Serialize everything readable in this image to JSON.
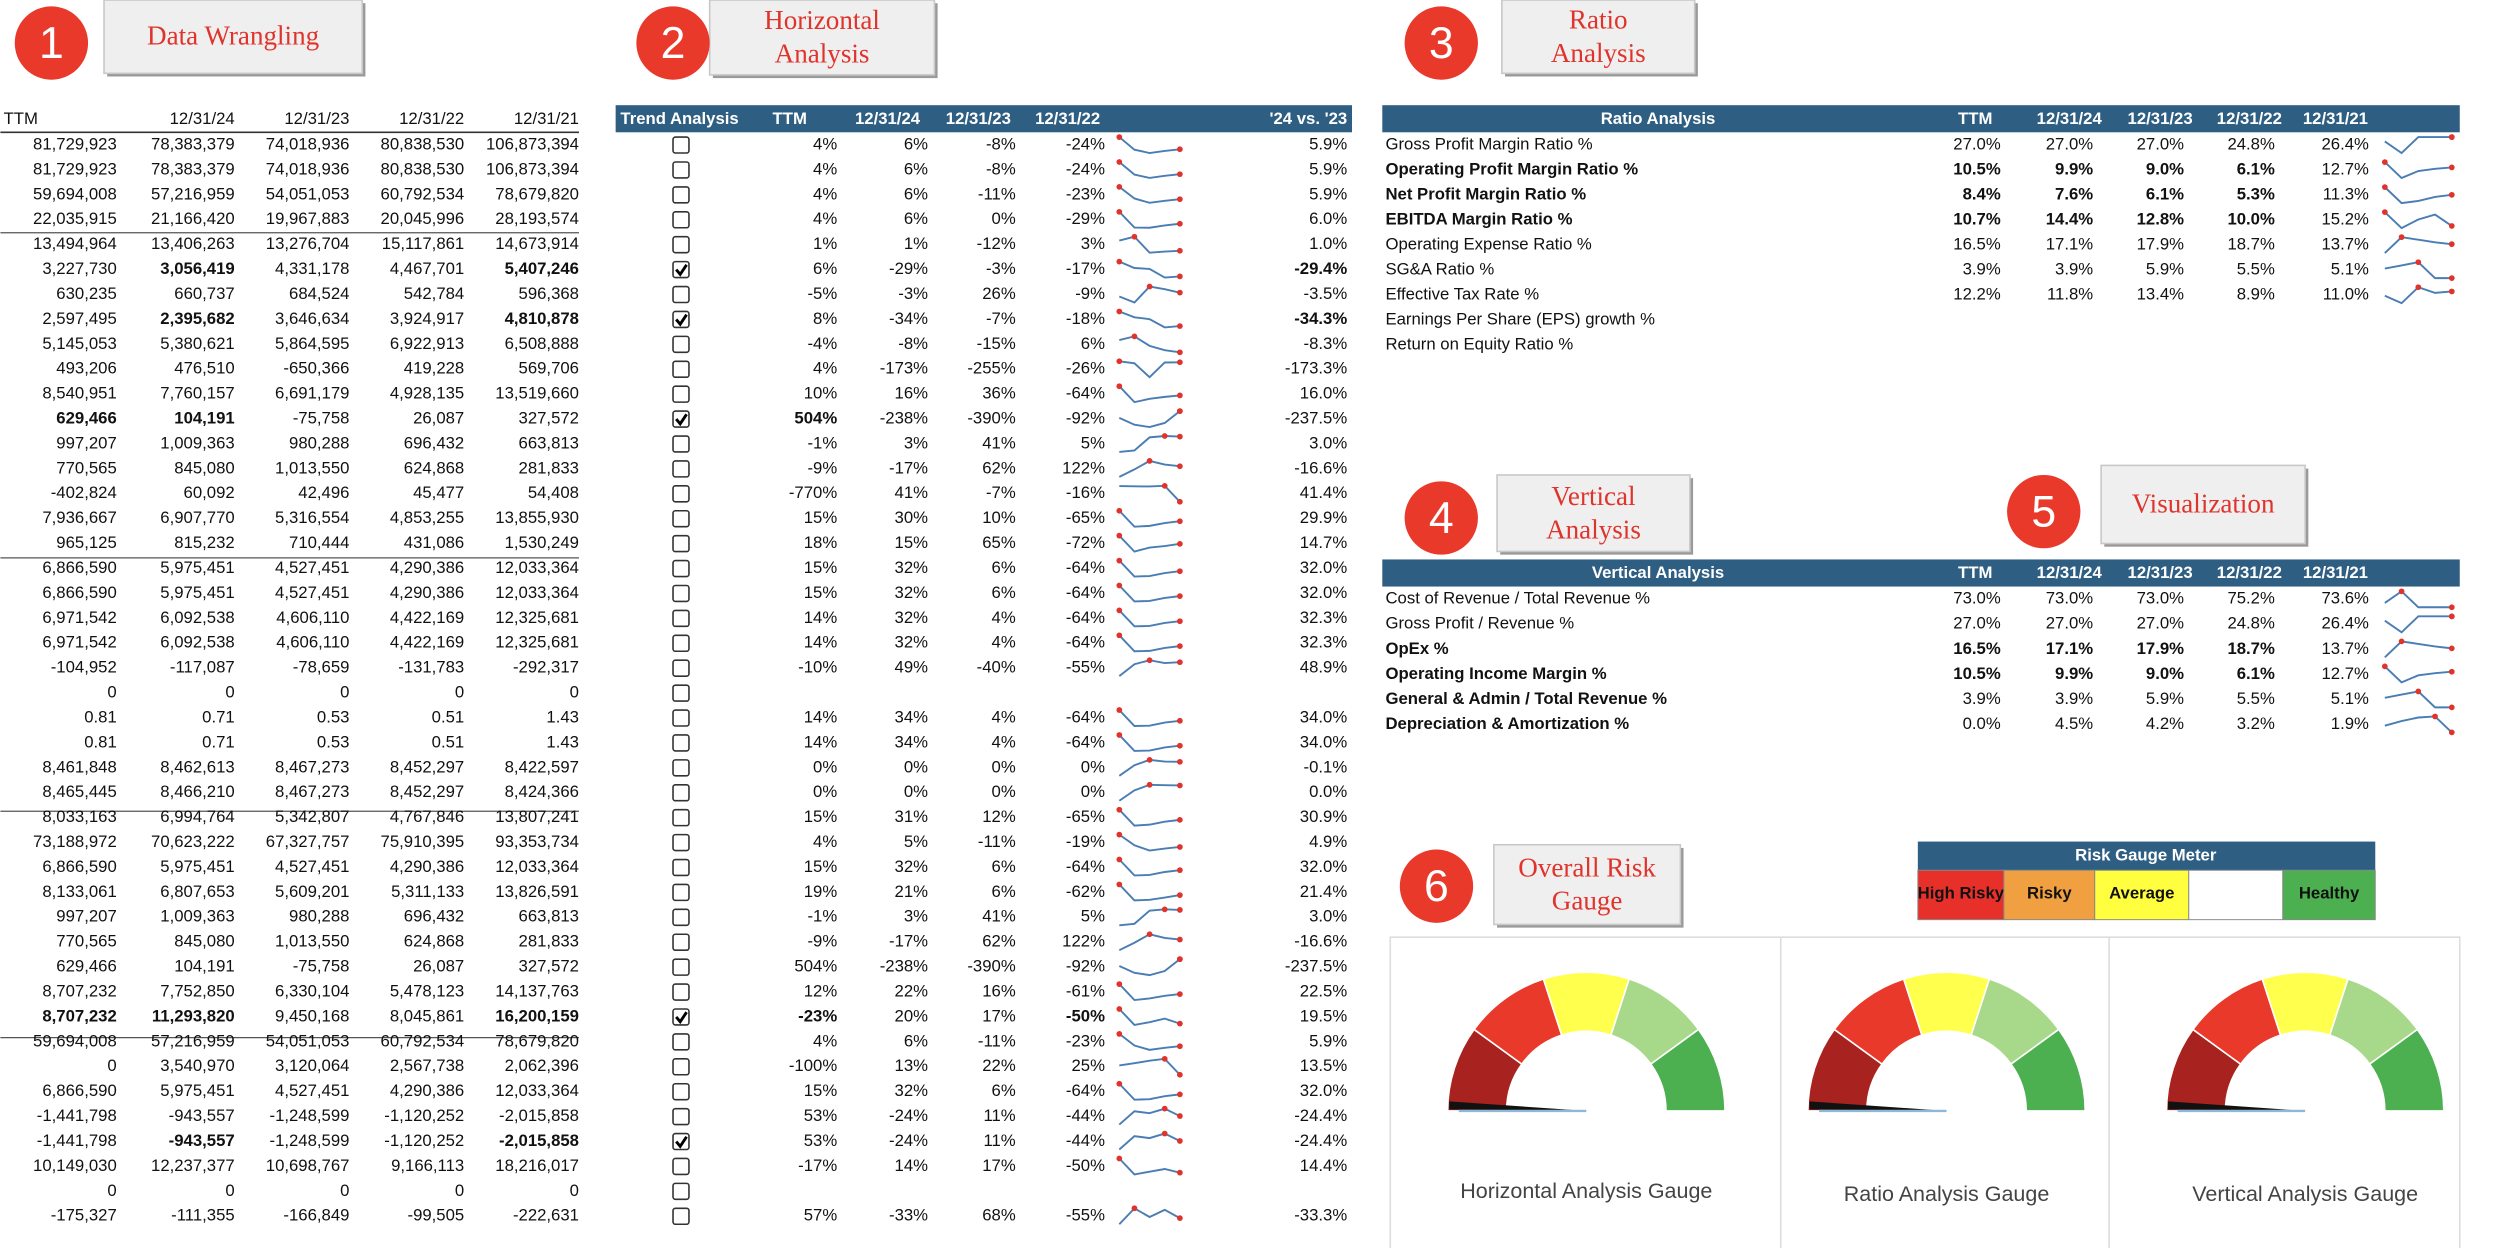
{
  "sections": [
    {
      "number": "1",
      "label": "Data Wrangling"
    },
    {
      "number": "2",
      "label": "Horizontal Analysis"
    },
    {
      "number": "3",
      "label": "Ratio Analysis"
    },
    {
      "number": "4",
      "label": "Vertical Analysis"
    },
    {
      "number": "5",
      "label": "Visualization"
    },
    {
      "number": "6",
      "label": "Overall Risk Gauge"
    }
  ],
  "data_table": {
    "columns": [
      "TTM",
      "12/31/24",
      "12/31/23",
      "12/31/22",
      "12/31/21"
    ],
    "rows": [
      [
        "81,729,923",
        "78,383,379",
        "74,018,936",
        "80,838,530",
        "106,873,394"
      ],
      [
        "81,729,923",
        "78,383,379",
        "74,018,936",
        "80,838,530",
        "106,873,394"
      ],
      [
        "59,694,008",
        "57,216,959",
        "54,051,053",
        "60,792,534",
        "78,679,820"
      ],
      [
        "22,035,915",
        "21,166,420",
        "19,967,883",
        "20,045,996",
        "28,193,574"
      ],
      [
        "13,494,964",
        "13,406,263",
        "13,276,704",
        "15,117,861",
        "14,673,914"
      ],
      [
        "3,227,730",
        "3,056,419",
        "4,331,178",
        "4,467,701",
        "5,407,246"
      ],
      [
        "630,235",
        "660,737",
        "684,524",
        "542,784",
        "596,368"
      ],
      [
        "2,597,495",
        "2,395,682",
        "3,646,634",
        "3,924,917",
        "4,810,878"
      ],
      [
        "5,145,053",
        "5,380,621",
        "5,864,595",
        "6,922,913",
        "6,508,888"
      ],
      [
        "493,206",
        "476,510",
        "-650,366",
        "419,228",
        "569,706"
      ],
      [
        "8,540,951",
        "7,760,157",
        "6,691,179",
        "4,928,135",
        "13,519,660"
      ],
      [
        "629,466",
        "104,191",
        "-75,758",
        "26,087",
        "327,572"
      ],
      [
        "997,207",
        "1,009,363",
        "980,288",
        "696,432",
        "663,813"
      ],
      [
        "770,565",
        "845,080",
        "1,013,550",
        "624,868",
        "281,833"
      ],
      [
        "-402,824",
        "60,092",
        "42,496",
        "45,477",
        "54,408"
      ],
      [
        "7,936,667",
        "6,907,770",
        "5,316,554",
        "4,853,255",
        "13,855,930"
      ],
      [
        "965,125",
        "815,232",
        "710,444",
        "431,086",
        "1,530,249"
      ],
      [
        "6,866,590",
        "5,975,451",
        "4,527,451",
        "4,290,386",
        "12,033,364"
      ],
      [
        "6,866,590",
        "5,975,451",
        "4,527,451",
        "4,290,386",
        "12,033,364"
      ],
      [
        "6,971,542",
        "6,092,538",
        "4,606,110",
        "4,422,169",
        "12,325,681"
      ],
      [
        "6,971,542",
        "6,092,538",
        "4,606,110",
        "4,422,169",
        "12,325,681"
      ],
      [
        "-104,952",
        "-117,087",
        "-78,659",
        "-131,783",
        "-292,317"
      ],
      [
        "0",
        "0",
        "0",
        "0",
        "0"
      ],
      [
        "0.81",
        "0.71",
        "0.53",
        "0.51",
        "1.43"
      ],
      [
        "0.81",
        "0.71",
        "0.53",
        "0.51",
        "1.43"
      ],
      [
        "8,461,848",
        "8,462,613",
        "8,467,273",
        "8,452,297",
        "8,422,597"
      ],
      [
        "8,465,445",
        "8,466,210",
        "8,467,273",
        "8,452,297",
        "8,424,366"
      ],
      [
        "8,033,163",
        "6,994,764",
        "5,342,807",
        "4,767,846",
        "13,807,241"
      ],
      [
        "73,188,972",
        "70,623,222",
        "67,327,757",
        "75,910,395",
        "93,353,734"
      ],
      [
        "6,866,590",
        "5,975,451",
        "4,527,451",
        "4,290,386",
        "12,033,364"
      ],
      [
        "8,133,061",
        "6,807,653",
        "5,609,201",
        "5,311,133",
        "13,826,591"
      ],
      [
        "997,207",
        "1,009,363",
        "980,288",
        "696,432",
        "663,813"
      ],
      [
        "770,565",
        "845,080",
        "1,013,550",
        "624,868",
        "281,833"
      ],
      [
        "629,466",
        "104,191",
        "-75,758",
        "26,087",
        "327,572"
      ],
      [
        "8,707,232",
        "7,752,850",
        "6,330,104",
        "5,478,123",
        "14,137,763"
      ],
      [
        "8,707,232",
        "11,293,820",
        "9,450,168",
        "8,045,861",
        "16,200,159"
      ],
      [
        "59,694,008",
        "57,216,959",
        "54,051,053",
        "60,792,534",
        "78,679,820"
      ],
      [
        "0",
        "3,540,970",
        "3,120,064",
        "2,567,738",
        "2,062,396"
      ],
      [
        "6,866,590",
        "5,975,451",
        "4,527,451",
        "4,290,386",
        "12,033,364"
      ],
      [
        "-1,441,798",
        "-943,557",
        "-1,248,599",
        "-1,120,252",
        "-2,015,858"
      ],
      [
        "-1,441,798",
        "-943,557",
        "-1,248,599",
        "-1,120,252",
        "-2,015,858"
      ],
      [
        "10,149,030",
        "12,237,377",
        "10,698,767",
        "9,166,113",
        "18,216,017"
      ],
      [
        "0",
        "0",
        "0",
        "0",
        "0"
      ],
      [
        "-175,327",
        "-111,355",
        "-166,849",
        "-99,505",
        "-222,631"
      ]
    ],
    "bold": {
      "5": [
        1,
        4
      ],
      "7": [
        1,
        4
      ],
      "11": [
        0,
        1
      ],
      "35": [
        0,
        1,
        4
      ],
      "40": [
        1,
        4
      ]
    }
  },
  "horizontal_analysis": {
    "columns": [
      "Trend Analysis",
      "TTM",
      "12/31/24",
      "12/31/23",
      "12/31/22",
      "'24 vs. '23"
    ],
    "checked": [
      5,
      7,
      11,
      35,
      40
    ],
    "bold": {
      "5": [
        4
      ],
      "7": [
        4
      ],
      "11": [
        0
      ],
      "35": [
        0,
        3
      ]
    },
    "rows": [
      [
        "4%",
        "6%",
        "-8%",
        "-24%",
        "5.9%"
      ],
      [
        "4%",
        "6%",
        "-8%",
        "-24%",
        "5.9%"
      ],
      [
        "4%",
        "6%",
        "-11%",
        "-23%",
        "5.9%"
      ],
      [
        "4%",
        "6%",
        "0%",
        "-29%",
        "6.0%"
      ],
      [
        "1%",
        "1%",
        "-12%",
        "3%",
        "1.0%"
      ],
      [
        "6%",
        "-29%",
        "-3%",
        "-17%",
        "-29.4%"
      ],
      [
        "-5%",
        "-3%",
        "26%",
        "-9%",
        "-3.5%"
      ],
      [
        "8%",
        "-34%",
        "-7%",
        "-18%",
        "-34.3%"
      ],
      [
        "-4%",
        "-8%",
        "-15%",
        "6%",
        "-8.3%"
      ],
      [
        "4%",
        "-173%",
        "-255%",
        "-26%",
        "-173.3%"
      ],
      [
        "10%",
        "16%",
        "36%",
        "-64%",
        "16.0%"
      ],
      [
        "504%",
        "-238%",
        "-390%",
        "-92%",
        "-237.5%"
      ],
      [
        "-1%",
        "3%",
        "41%",
        "5%",
        "3.0%"
      ],
      [
        "-9%",
        "-17%",
        "62%",
        "122%",
        "-16.6%"
      ],
      [
        "-770%",
        "41%",
        "-7%",
        "-16%",
        "41.4%"
      ],
      [
        "15%",
        "30%",
        "10%",
        "-65%",
        "29.9%"
      ],
      [
        "18%",
        "15%",
        "65%",
        "-72%",
        "14.7%"
      ],
      [
        "15%",
        "32%",
        "6%",
        "-64%",
        "32.0%"
      ],
      [
        "15%",
        "32%",
        "6%",
        "-64%",
        "32.0%"
      ],
      [
        "14%",
        "32%",
        "4%",
        "-64%",
        "32.3%"
      ],
      [
        "14%",
        "32%",
        "4%",
        "-64%",
        "32.3%"
      ],
      [
        "-10%",
        "49%",
        "-40%",
        "-55%",
        "48.9%"
      ],
      [],
      [
        "14%",
        "34%",
        "4%",
        "-64%",
        "34.0%"
      ],
      [
        "14%",
        "34%",
        "4%",
        "-64%",
        "34.0%"
      ],
      [
        "0%",
        "0%",
        "0%",
        "0%",
        "-0.1%"
      ],
      [
        "0%",
        "0%",
        "0%",
        "0%",
        "0.0%"
      ],
      [
        "15%",
        "31%",
        "12%",
        "-65%",
        "30.9%"
      ],
      [
        "4%",
        "5%",
        "-11%",
        "-19%",
        "4.9%"
      ],
      [
        "15%",
        "32%",
        "6%",
        "-64%",
        "32.0%"
      ],
      [
        "19%",
        "21%",
        "6%",
        "-62%",
        "21.4%"
      ],
      [
        "-1%",
        "3%",
        "41%",
        "5%",
        "3.0%"
      ],
      [
        "-9%",
        "-17%",
        "62%",
        "122%",
        "-16.6%"
      ],
      [
        "504%",
        "-238%",
        "-390%",
        "-92%",
        "-237.5%"
      ],
      [
        "12%",
        "22%",
        "16%",
        "-61%",
        "22.5%"
      ],
      [
        "-23%",
        "20%",
        "17%",
        "-50%",
        "19.5%"
      ],
      [
        "4%",
        "6%",
        "-11%",
        "-23%",
        "5.9%"
      ],
      [
        "-100%",
        "13%",
        "22%",
        "25%",
        "13.5%"
      ],
      [
        "15%",
        "32%",
        "6%",
        "-64%",
        "32.0%"
      ],
      [
        "53%",
        "-24%",
        "11%",
        "-44%",
        "-24.4%"
      ],
      [
        "53%",
        "-24%",
        "11%",
        "-44%",
        "-24.4%"
      ],
      [
        "-17%",
        "14%",
        "17%",
        "-50%",
        "14.4%"
      ],
      [],
      [
        "57%",
        "-33%",
        "68%",
        "-55%",
        "-33.3%"
      ]
    ]
  },
  "ratio_analysis": {
    "columns": [
      "Ratio Analysis",
      "TTM",
      "12/31/24",
      "12/31/23",
      "12/31/22",
      "12/31/21"
    ],
    "rows": [
      {
        "label": "Gross Profit Margin Ratio %",
        "cells": [
          "27.0%",
          "27.0%",
          "27.0%",
          "24.8%",
          "26.4%"
        ]
      },
      {
        "label": "Operating Profit Margin Ratio %",
        "bold": true,
        "cells": [
          "10.5%",
          "9.9%",
          "9.0%",
          "6.1%",
          "12.7%"
        ]
      },
      {
        "label": "Net Profit Margin Ratio %",
        "bold": true,
        "cells": [
          "8.4%",
          "7.6%",
          "6.1%",
          "5.3%",
          "11.3%"
        ]
      },
      {
        "label": "EBITDA Margin Ratio %",
        "bold": true,
        "cells": [
          "10.7%",
          "14.4%",
          "12.8%",
          "10.0%",
          "15.2%"
        ]
      },
      {
        "label": "Operating Expense Ratio %",
        "cells": [
          "16.5%",
          "17.1%",
          "17.9%",
          "18.7%",
          "13.7%"
        ]
      },
      {
        "label": "SG&A Ratio %",
        "cells": [
          "3.9%",
          "3.9%",
          "5.9%",
          "5.5%",
          "5.1%"
        ]
      },
      {
        "label": "Effective Tax Rate %",
        "cells": [
          "12.2%",
          "11.8%",
          "13.4%",
          "8.9%",
          "11.0%"
        ]
      },
      {
        "label": "Earnings Per Share (EPS) growth %",
        "cells": []
      },
      {
        "label": "Return on Equity Ratio %",
        "cells": []
      }
    ]
  },
  "vertical_analysis": {
    "columns": [
      "Vertical Analysis",
      "TTM",
      "12/31/24",
      "12/31/23",
      "12/31/22",
      "12/31/21"
    ],
    "rows": [
      {
        "label": "Cost of Revenue / Total Revenue %",
        "cells": [
          "73.0%",
          "73.0%",
          "73.0%",
          "75.2%",
          "73.6%"
        ]
      },
      {
        "label": "Gross Profit / Revenue %",
        "cells": [
          "27.0%",
          "27.0%",
          "27.0%",
          "24.8%",
          "26.4%"
        ]
      },
      {
        "label": "OpEx %",
        "bold": true,
        "bold_cells": true,
        "cells": [
          "16.5%",
          "17.1%",
          "17.9%",
          "18.7%",
          "13.7%"
        ]
      },
      {
        "label": "Operating Income Margin %",
        "bold": true,
        "bold_cells": true,
        "cells": [
          "10.5%",
          "9.9%",
          "9.0%",
          "6.1%",
          "12.7%"
        ]
      },
      {
        "label": "General & Admin / Total Revenue %",
        "bold": true,
        "cells": [
          "3.9%",
          "3.9%",
          "5.9%",
          "5.5%",
          "5.1%"
        ]
      },
      {
        "label": "Depreciation & Amortization %",
        "bold": true,
        "cells": [
          "0.0%",
          "4.5%",
          "4.2%",
          "3.2%",
          "1.9%"
        ]
      }
    ]
  },
  "risk_meter": {
    "title": "Risk Gauge Meter",
    "levels": [
      {
        "label": "High Risky",
        "color": "#e8302a"
      },
      {
        "label": "Risky",
        "color": "#f0a040"
      },
      {
        "label": "Average",
        "color": "#ffff40"
      },
      {
        "color": "#ffffff"
      },
      {
        "label": "Healthy",
        "color": "#4caf50"
      }
    ]
  },
  "gauges": {
    "colors": [
      "#a8231f",
      "#e8392b",
      "#ffff4d",
      "#a8d98a",
      "#4caf50"
    ],
    "labels": [
      "Horizontal Analysis Gauge",
      "Ratio Analysis Gauge",
      "Vertical Analysis Gauge"
    ]
  }
}
